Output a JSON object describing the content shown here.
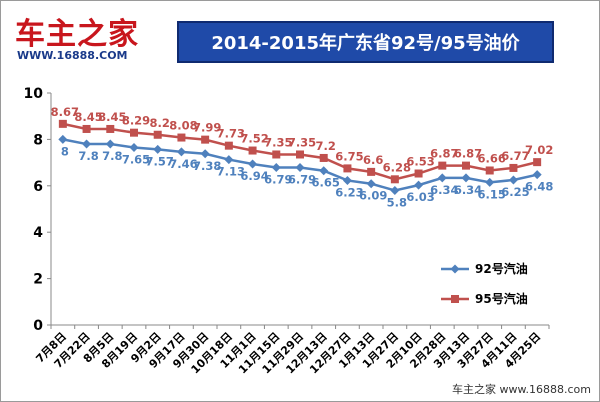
{
  "logo": {
    "name": "车主之家",
    "url": "WWW.16888.COM"
  },
  "watermark": "车主之家 www.16888.com",
  "colors": {
    "series92": "#4f81bd",
    "series95": "#c0504d",
    "title_bg": "#1f4aa8",
    "logo": "#c8161d"
  },
  "chart_data": {
    "type": "line",
    "title": "2014-2015年广东省92号/95号油价",
    "xlabel": "",
    "ylabel": "",
    "ylim": [
      0,
      10
    ],
    "yticks": [
      0,
      2,
      4,
      6,
      8,
      10
    ],
    "grid": false,
    "legend": "right",
    "categories": [
      "7月8日",
      "7月22日",
      "8月5日",
      "8月19日",
      "9月2日",
      "9月17日",
      "9月30日",
      "10月18日",
      "11月1日",
      "11月15日",
      "11月29日",
      "12月13日",
      "12月27日",
      "1月13日",
      "1月27日",
      "2月10日",
      "2月28日",
      "3月13日",
      "3月27日",
      "4月11日",
      "4月25日"
    ],
    "series": [
      {
        "name": "92号汽油",
        "values": [
          8,
          7.8,
          7.8,
          7.65,
          7.57,
          7.46,
          7.38,
          7.13,
          6.94,
          6.79,
          6.79,
          6.65,
          6.23,
          6.09,
          5.8,
          6.03,
          6.34,
          6.34,
          6.15,
          6.25,
          6.48
        ]
      },
      {
        "name": "95号汽油",
        "values": [
          8.67,
          8.45,
          8.45,
          8.29,
          8.2,
          8.08,
          7.99,
          7.73,
          7.52,
          7.35,
          7.35,
          7.2,
          6.75,
          6.6,
          6.28,
          6.53,
          6.87,
          6.87,
          6.66,
          6.77,
          7.02
        ]
      }
    ]
  }
}
